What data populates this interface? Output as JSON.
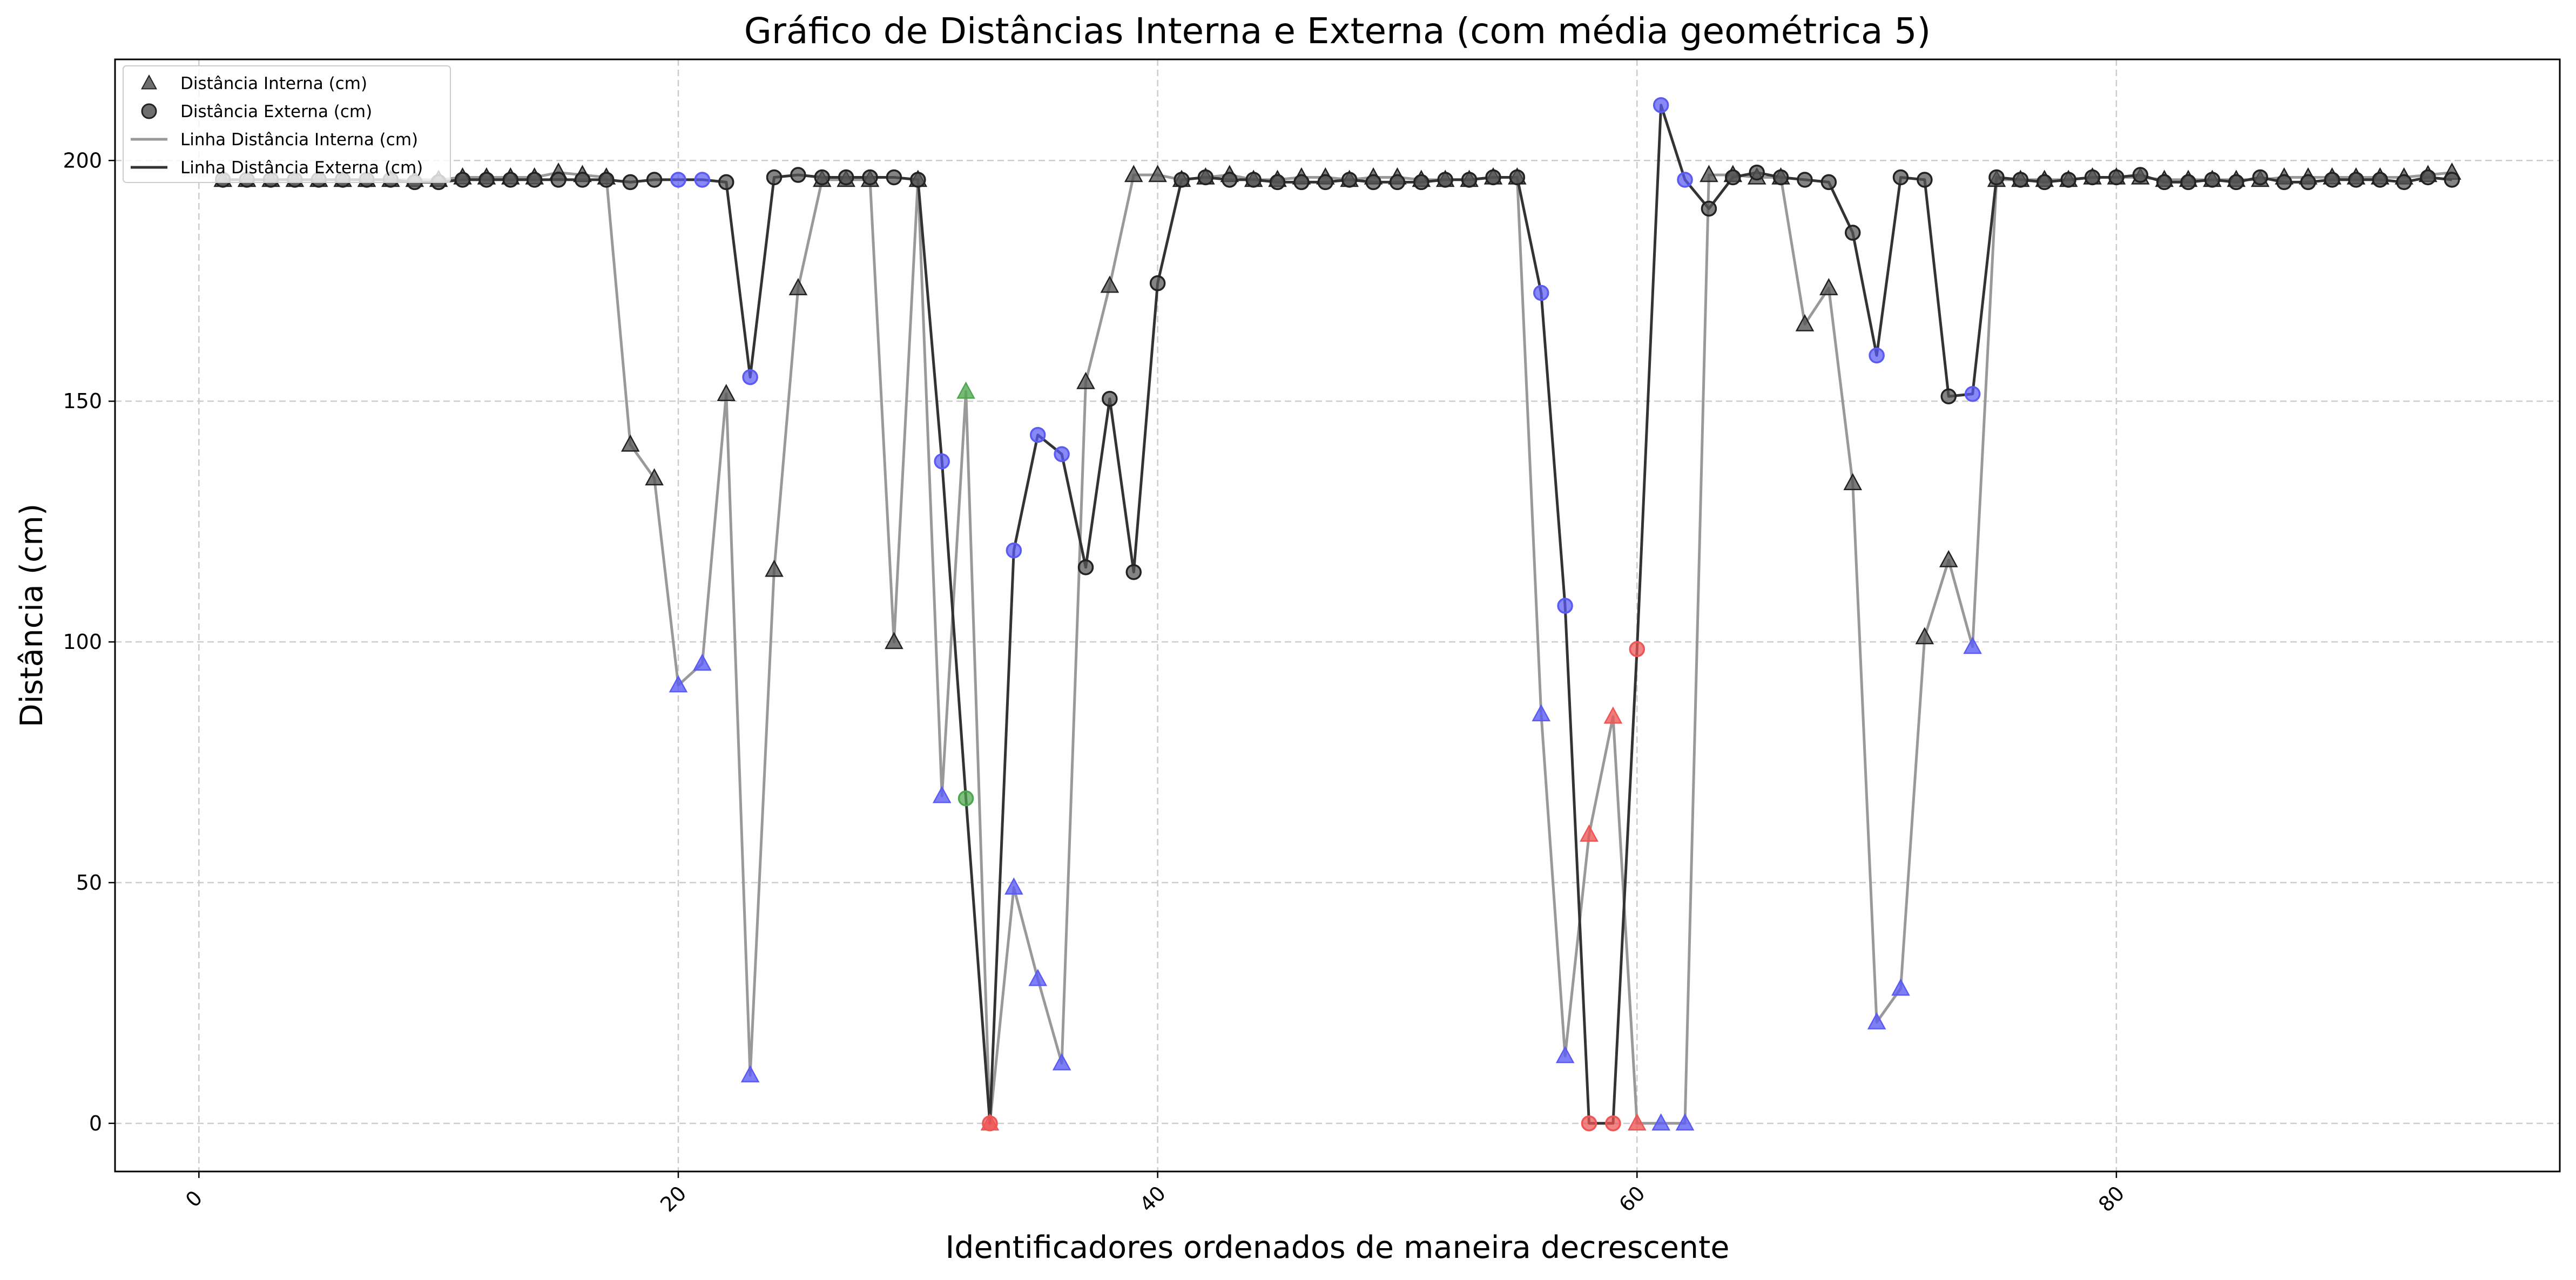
{
  "chart_data": {
    "type": "line",
    "title": "Gráfico de Distâncias Interna e Externa (com média geométrica 5)",
    "xlabel": "Identificadores ordenados de maneira decrescente",
    "ylabel": "Distância (cm)",
    "xlim": [
      -3.5,
      98.5
    ],
    "ylim": [
      -10,
      221
    ],
    "x_ticks": [
      0,
      20,
      40,
      60,
      80
    ],
    "y_ticks": [
      0,
      50,
      100,
      150,
      200
    ],
    "grid": true,
    "legend_position": "top-left",
    "colors": {
      "internal_line": "#999999",
      "external_line": "#333333",
      "default_marker": "#555555",
      "blue_marker": "#5a5af5",
      "green_marker": "#4fa64f",
      "red_marker": "#ee5555"
    },
    "legend": [
      {
        "label": "Distância Interna (cm)",
        "kind": "triangle"
      },
      {
        "label": "Distância Externa (cm)",
        "kind": "circle"
      },
      {
        "label": "Linha Distância Interna (cm)",
        "kind": "line-light"
      },
      {
        "label": "Linha Distância Externa (cm)",
        "kind": "line-dark"
      }
    ],
    "series": [
      {
        "name": "Distância Interna (cm)",
        "x": [
          1,
          2,
          3,
          4,
          5,
          6,
          7,
          8,
          9,
          10,
          11,
          12,
          13,
          14,
          15,
          16,
          17,
          18,
          19,
          20,
          21,
          22,
          23,
          24,
          25,
          26,
          27,
          28,
          29,
          30,
          31,
          32,
          33,
          34,
          35,
          36,
          37,
          38,
          39,
          40,
          41,
          42,
          43,
          44,
          45,
          46,
          47,
          48,
          49,
          50,
          51,
          52,
          53,
          54,
          55,
          56,
          57,
          58,
          59,
          60,
          61,
          62,
          63,
          64,
          65,
          66,
          67,
          68,
          69,
          70,
          71,
          72,
          73,
          74,
          75,
          76,
          77,
          78,
          79,
          80,
          81,
          82,
          83,
          84,
          85,
          86,
          87,
          88,
          89,
          90,
          91,
          92,
          93,
          94
        ],
        "values": [
          196,
          196,
          196,
          196,
          196,
          196,
          196,
          196,
          196,
          196,
          196.5,
          196.5,
          196.5,
          196.5,
          197.5,
          197,
          196.5,
          141,
          134,
          91,
          95.5,
          151.5,
          10,
          115,
          173.5,
          196,
          196,
          196,
          100,
          196,
          68,
          152,
          0,
          49,
          30,
          12.5,
          154,
          174,
          197,
          197,
          196,
          196.5,
          197,
          196,
          196,
          196.5,
          196.5,
          196,
          196.5,
          196.5,
          196,
          196,
          196,
          196.5,
          196.5,
          85,
          14,
          60,
          84.5,
          0,
          0,
          0,
          197,
          197,
          196.5,
          196.5,
          166,
          173.5,
          133,
          21,
          28,
          101,
          117,
          99,
          196,
          196,
          196,
          196,
          196.5,
          196.5,
          196.5,
          196,
          196,
          196,
          196,
          196,
          196.5,
          196.5,
          196.5,
          196.5,
          196.5,
          196.5,
          197,
          197.5
        ],
        "marker_colors": {
          "20": "blue",
          "21": "blue",
          "23": "blue",
          "31": "blue",
          "32": "green",
          "33": "red",
          "34": "blue",
          "35": "blue",
          "36": "blue",
          "56": "blue",
          "57": "blue",
          "58": "red",
          "59": "red",
          "60": "red",
          "61": "blue",
          "62": "blue",
          "70": "blue",
          "71": "blue",
          "74": "blue"
        }
      },
      {
        "name": "Distância Externa (cm)",
        "x": [
          1,
          2,
          3,
          4,
          5,
          6,
          7,
          8,
          9,
          10,
          11,
          12,
          13,
          14,
          15,
          16,
          17,
          18,
          19,
          20,
          21,
          22,
          23,
          24,
          25,
          26,
          27,
          28,
          29,
          30,
          31,
          32,
          33,
          34,
          35,
          36,
          37,
          38,
          39,
          40,
          41,
          42,
          43,
          44,
          45,
          46,
          47,
          48,
          49,
          50,
          51,
          52,
          53,
          54,
          55,
          56,
          57,
          58,
          59,
          60,
          61,
          62,
          63,
          64,
          65,
          66,
          67,
          68,
          69,
          70,
          71,
          72,
          73,
          74,
          75,
          76,
          77,
          78,
          79,
          80,
          81,
          82,
          83,
          84,
          85,
          86,
          87,
          88,
          89,
          90,
          91,
          92,
          93,
          94
        ],
        "values": [
          196,
          196,
          196,
          196,
          196,
          196,
          196,
          196,
          195.5,
          195.5,
          196,
          196,
          196,
          196,
          196,
          196,
          196,
          195.5,
          196,
          196,
          196,
          195.5,
          155,
          196.5,
          197,
          196.5,
          196.5,
          196.5,
          196.5,
          196,
          137.5,
          67.5,
          0,
          119,
          143,
          139,
          115.5,
          150.5,
          114.5,
          174.5,
          196,
          196.5,
          196,
          196,
          195.5,
          195.5,
          195.5,
          196,
          195.5,
          195.5,
          195.5,
          196,
          196,
          196.5,
          196.5,
          172.5,
          107.5,
          0,
          0,
          98.5,
          211.5,
          196,
          190,
          196.5,
          197.5,
          196.5,
          196,
          195.5,
          185,
          159.5,
          196.5,
          196,
          151,
          151.5,
          196.5,
          196,
          195.5,
          196,
          196.5,
          196.5,
          197,
          195.5,
          195.5,
          196,
          195.5,
          196.5,
          195.5,
          195.5,
          196,
          196,
          196,
          195.5,
          196.5,
          196
        ],
        "marker_colors": {
          "20": "blue",
          "21": "blue",
          "23": "blue",
          "31": "blue",
          "32": "green",
          "33": "red",
          "34": "blue",
          "35": "blue",
          "36": "blue",
          "56": "blue",
          "57": "blue",
          "58": "red",
          "59": "red",
          "60": "red",
          "61": "blue",
          "62": "blue",
          "70": "blue",
          "74": "blue"
        }
      }
    ]
  }
}
